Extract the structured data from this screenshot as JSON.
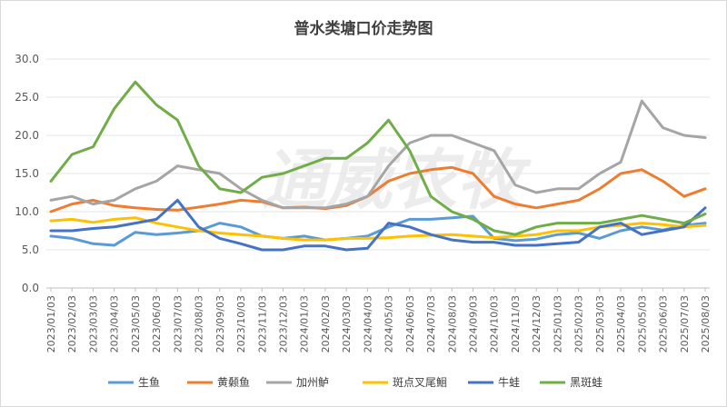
{
  "chart_data": {
    "type": "line",
    "title": "普水类塘口价走势图",
    "xlabel": "",
    "ylabel": "",
    "ylim": [
      0,
      30
    ],
    "yticks": [
      "0.0",
      "5.0",
      "10.0",
      "15.0",
      "20.0",
      "25.0",
      "30.0"
    ],
    "grid": true,
    "legend_position": "bottom",
    "watermark": "通威农牧",
    "x": [
      "2023/01/03",
      "2023/02/03",
      "2023/03/03",
      "2023/04/03",
      "2023/05/03",
      "2023/06/03",
      "2023/07/03",
      "2023/08/03",
      "2023/09/03",
      "2023/10/03",
      "2023/11/03",
      "2023/12/03",
      "2024/01/03",
      "2024/02/03",
      "2024/03/03",
      "2024/04/03",
      "2024/05/03",
      "2024/06/03",
      "2024/07/03",
      "2024/08/03",
      "2024/09/03",
      "2024/10/03",
      "2024/11/03",
      "2024/12/03",
      "2025/01/03",
      "2025/02/03",
      "2025/03/03",
      "2025/04/03",
      "2025/05/03",
      "2025/06/03",
      "2025/07/03",
      "2025/08/03"
    ],
    "series": [
      {
        "name": "生鱼",
        "color": "#5b9bd5",
        "values": [
          6.8,
          6.5,
          5.8,
          5.6,
          7.3,
          7.0,
          7.2,
          7.5,
          8.5,
          8.0,
          6.8,
          6.5,
          6.8,
          6.3,
          6.5,
          6.8,
          8.0,
          9.0,
          9.0,
          9.2,
          9.4,
          6.5,
          6.2,
          6.4,
          7.0,
          7.2,
          6.5,
          7.5,
          8.0,
          7.6,
          8.2,
          8.5
        ]
      },
      {
        "name": "黄颡鱼",
        "color": "#ed7d31",
        "values": [
          10.0,
          11.0,
          11.5,
          10.8,
          10.5,
          10.3,
          10.2,
          10.6,
          11.0,
          11.5,
          11.3,
          10.5,
          10.6,
          10.4,
          10.8,
          12.0,
          14.0,
          15.0,
          15.5,
          15.8,
          15.0,
          12.0,
          11.0,
          10.5,
          11.0,
          11.5,
          13.0,
          15.0,
          15.5,
          14.0,
          12.0,
          13.0
        ]
      },
      {
        "name": "加州鲈",
        "color": "#a5a5a5",
        "values": [
          11.5,
          12.0,
          11.0,
          11.5,
          13.0,
          14.0,
          16.0,
          15.5,
          15.0,
          13.0,
          11.5,
          10.5,
          10.5,
          10.5,
          11.0,
          12.0,
          16.0,
          19.0,
          20.0,
          20.0,
          19.0,
          18.0,
          13.5,
          12.5,
          13.0,
          13.0,
          15.0,
          16.5,
          24.5,
          21.0,
          20.0,
          19.7
        ]
      },
      {
        "name": "斑点叉尾鮰",
        "color": "#ffc000",
        "values": [
          8.8,
          9.0,
          8.6,
          9.0,
          9.2,
          8.5,
          8.0,
          7.5,
          7.2,
          7.0,
          6.8,
          6.5,
          6.3,
          6.3,
          6.5,
          6.5,
          6.6,
          6.8,
          6.9,
          7.0,
          6.8,
          6.6,
          6.8,
          7.0,
          7.5,
          7.5,
          8.0,
          8.2,
          8.5,
          8.3,
          8.0,
          8.2
        ]
      },
      {
        "name": "牛蛙",
        "color": "#4472c4",
        "values": [
          7.5,
          7.5,
          7.8,
          8.0,
          8.5,
          9.0,
          11.5,
          8.0,
          6.5,
          5.8,
          5.0,
          5.0,
          5.5,
          5.5,
          5.0,
          5.2,
          8.5,
          8.0,
          7.0,
          6.3,
          6.0,
          6.0,
          5.6,
          5.6,
          5.8,
          6.0,
          8.0,
          8.5,
          7.0,
          7.5,
          8.0,
          10.5
        ]
      },
      {
        "name": "黑斑蛙",
        "color": "#70ad47",
        "values": [
          14.0,
          17.5,
          18.5,
          23.5,
          27.0,
          24.0,
          22.0,
          16.0,
          13.0,
          12.5,
          14.5,
          15.0,
          16.0,
          17.0,
          17.0,
          19.0,
          22.0,
          18.0,
          12.0,
          10.0,
          9.0,
          7.5,
          7.0,
          8.0,
          8.5,
          8.5,
          8.5,
          9.0,
          9.5,
          9.0,
          8.5,
          9.7
        ]
      }
    ]
  }
}
